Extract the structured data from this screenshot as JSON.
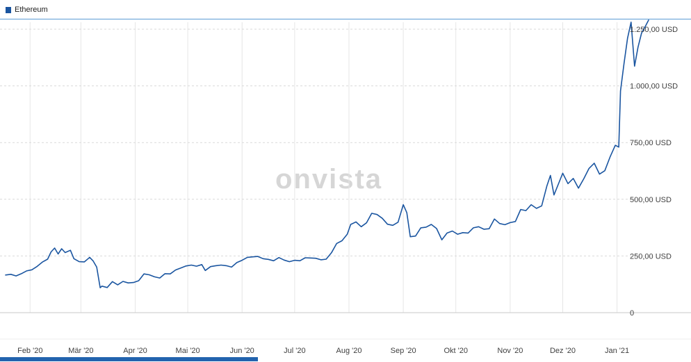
{
  "legend": {
    "label": "Ethereum"
  },
  "watermark": "onvista",
  "colors": {
    "line": "#1a55a0",
    "legend_marker": "#1a55a0",
    "top_rule": "#5b9bd5",
    "scrollbar": "#2263ae",
    "watermark": "#d6d6d6",
    "grid_v": "#e6e6e6",
    "grid_h": "#d9d9d9",
    "axis": "#c9c9c9",
    "axis2": "#ececec",
    "tick_text": "#3f3f3f"
  },
  "chart_data": {
    "type": "line",
    "title": "Ethereum",
    "currency": "USD",
    "grid": true,
    "legend_position": "top-left",
    "xlim": [
      "2020-01-18",
      "2021-01-21"
    ],
    "ylim": [
      0,
      1250
    ],
    "y_ticks": [
      {
        "value": 1250,
        "label": "1.250,00 USD"
      },
      {
        "value": 1000,
        "label": "1.000,00 USD"
      },
      {
        "value": 750,
        "label": "750,00 USD"
      },
      {
        "value": 500,
        "label": "500,00 USD"
      },
      {
        "value": 250,
        "label": "250,00 USD"
      },
      {
        "value": 0,
        "label": "0"
      }
    ],
    "x_ticks": [
      {
        "date": "2020-02-01",
        "label": "Feb '20"
      },
      {
        "date": "2020-03-01",
        "label": "Mär '20"
      },
      {
        "date": "2020-04-01",
        "label": "Apr '20"
      },
      {
        "date": "2020-05-01",
        "label": "Mai '20"
      },
      {
        "date": "2020-06-01",
        "label": "Jun '20"
      },
      {
        "date": "2020-07-01",
        "label": "Jul '20"
      },
      {
        "date": "2020-08-01",
        "label": "Aug '20"
      },
      {
        "date": "2020-09-01",
        "label": "Sep '20"
      },
      {
        "date": "2020-10-01",
        "label": "Okt '20"
      },
      {
        "date": "2020-11-01",
        "label": "Nov '20"
      },
      {
        "date": "2020-12-01",
        "label": "Dez '20"
      },
      {
        "date": "2021-01-01",
        "label": "Jan '21"
      }
    ],
    "series": [
      {
        "name": "Ethereum",
        "color": "#1a55a0",
        "points": [
          [
            "2020-01-18",
            166
          ],
          [
            "2020-01-21",
            169
          ],
          [
            "2020-01-24",
            162
          ],
          [
            "2020-01-27",
            172
          ],
          [
            "2020-01-30",
            184
          ],
          [
            "2020-02-02",
            189
          ],
          [
            "2020-02-05",
            204
          ],
          [
            "2020-02-08",
            223
          ],
          [
            "2020-02-11",
            236
          ],
          [
            "2020-02-13",
            268
          ],
          [
            "2020-02-15",
            285
          ],
          [
            "2020-02-17",
            259
          ],
          [
            "2020-02-19",
            282
          ],
          [
            "2020-02-21",
            265
          ],
          [
            "2020-02-24",
            275
          ],
          [
            "2020-02-26",
            238
          ],
          [
            "2020-02-29",
            225
          ],
          [
            "2020-03-03",
            224
          ],
          [
            "2020-03-06",
            244
          ],
          [
            "2020-03-08",
            228
          ],
          [
            "2020-03-10",
            201
          ],
          [
            "2020-03-12",
            110
          ],
          [
            "2020-03-13",
            117
          ],
          [
            "2020-03-16",
            111
          ],
          [
            "2020-03-19",
            137
          ],
          [
            "2020-03-22",
            123
          ],
          [
            "2020-03-25",
            138
          ],
          [
            "2020-03-28",
            131
          ],
          [
            "2020-03-31",
            133
          ],
          [
            "2020-04-03",
            141
          ],
          [
            "2020-04-06",
            171
          ],
          [
            "2020-04-09",
            167
          ],
          [
            "2020-04-12",
            158
          ],
          [
            "2020-04-15",
            153
          ],
          [
            "2020-04-18",
            172
          ],
          [
            "2020-04-21",
            171
          ],
          [
            "2020-04-24",
            188
          ],
          [
            "2020-04-27",
            197
          ],
          [
            "2020-04-30",
            206
          ],
          [
            "2020-05-03",
            210
          ],
          [
            "2020-05-06",
            205
          ],
          [
            "2020-05-09",
            212
          ],
          [
            "2020-05-11",
            186
          ],
          [
            "2020-05-14",
            203
          ],
          [
            "2020-05-17",
            207
          ],
          [
            "2020-05-20",
            210
          ],
          [
            "2020-05-23",
            207
          ],
          [
            "2020-05-26",
            201
          ],
          [
            "2020-05-29",
            221
          ],
          [
            "2020-06-01",
            231
          ],
          [
            "2020-06-04",
            244
          ],
          [
            "2020-06-07",
            246
          ],
          [
            "2020-06-10",
            248
          ],
          [
            "2020-06-13",
            238
          ],
          [
            "2020-06-16",
            235
          ],
          [
            "2020-06-19",
            229
          ],
          [
            "2020-06-22",
            243
          ],
          [
            "2020-06-25",
            232
          ],
          [
            "2020-06-28",
            225
          ],
          [
            "2020-07-01",
            231
          ],
          [
            "2020-07-04",
            229
          ],
          [
            "2020-07-07",
            242
          ],
          [
            "2020-07-10",
            241
          ],
          [
            "2020-07-13",
            240
          ],
          [
            "2020-07-16",
            233
          ],
          [
            "2020-07-19",
            236
          ],
          [
            "2020-07-22",
            264
          ],
          [
            "2020-07-25",
            305
          ],
          [
            "2020-07-28",
            317
          ],
          [
            "2020-07-31",
            346
          ],
          [
            "2020-08-02",
            389
          ],
          [
            "2020-08-05",
            400
          ],
          [
            "2020-08-08",
            379
          ],
          [
            "2020-08-11",
            396
          ],
          [
            "2020-08-14",
            438
          ],
          [
            "2020-08-17",
            433
          ],
          [
            "2020-08-20",
            416
          ],
          [
            "2020-08-23",
            390
          ],
          [
            "2020-08-26",
            385
          ],
          [
            "2020-08-29",
            399
          ],
          [
            "2020-09-01",
            476
          ],
          [
            "2020-09-03",
            441
          ],
          [
            "2020-09-05",
            335
          ],
          [
            "2020-09-08",
            338
          ],
          [
            "2020-09-11",
            374
          ],
          [
            "2020-09-14",
            377
          ],
          [
            "2020-09-17",
            389
          ],
          [
            "2020-09-20",
            371
          ],
          [
            "2020-09-23",
            321
          ],
          [
            "2020-09-26",
            351
          ],
          [
            "2020-09-29",
            360
          ],
          [
            "2020-10-02",
            346
          ],
          [
            "2020-10-05",
            353
          ],
          [
            "2020-10-08",
            351
          ],
          [
            "2020-10-11",
            374
          ],
          [
            "2020-10-14",
            379
          ],
          [
            "2020-10-17",
            368
          ],
          [
            "2020-10-20",
            370
          ],
          [
            "2020-10-23",
            413
          ],
          [
            "2020-10-26",
            393
          ],
          [
            "2020-10-29",
            388
          ],
          [
            "2020-11-01",
            397
          ],
          [
            "2020-11-04",
            402
          ],
          [
            "2020-11-07",
            455
          ],
          [
            "2020-11-10",
            450
          ],
          [
            "2020-11-13",
            476
          ],
          [
            "2020-11-16",
            460
          ],
          [
            "2020-11-19",
            471
          ],
          [
            "2020-11-22",
            560
          ],
          [
            "2020-11-24",
            605
          ],
          [
            "2020-11-26",
            519
          ],
          [
            "2020-11-29",
            576
          ],
          [
            "2020-12-01",
            615
          ],
          [
            "2020-12-04",
            569
          ],
          [
            "2020-12-07",
            592
          ],
          [
            "2020-12-10",
            549
          ],
          [
            "2020-12-13",
            590
          ],
          [
            "2020-12-16",
            636
          ],
          [
            "2020-12-19",
            659
          ],
          [
            "2020-12-22",
            611
          ],
          [
            "2020-12-25",
            626
          ],
          [
            "2020-12-28",
            686
          ],
          [
            "2020-12-31",
            738
          ],
          [
            "2021-01-02",
            730
          ],
          [
            "2021-01-03",
            978
          ],
          [
            "2021-01-05",
            1100
          ],
          [
            "2021-01-07",
            1210
          ],
          [
            "2021-01-09",
            1281
          ],
          [
            "2021-01-11",
            1087
          ],
          [
            "2021-01-13",
            1171
          ],
          [
            "2021-01-15",
            1233
          ],
          [
            "2021-01-17",
            1260
          ],
          [
            "2021-01-19",
            1290
          ]
        ]
      }
    ]
  }
}
